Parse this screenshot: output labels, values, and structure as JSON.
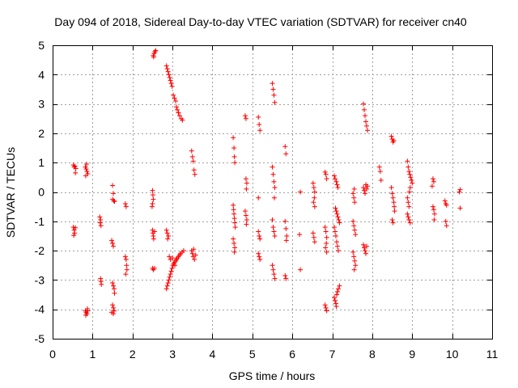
{
  "chart_data": {
    "type": "scatter",
    "title": "Day 094 of 2018, Sidereal Day-to-day VTEC variation (SDTVAR) for receiver cn40",
    "xlabel": "GPS time / hours",
    "ylabel": "SDTVAR / TECUs",
    "xlim": [
      0,
      11
    ],
    "ylim": [
      -5,
      5
    ],
    "x_ticks": [
      "0",
      "1",
      "2",
      "3",
      "4",
      "5",
      "6",
      "7",
      "8",
      "9",
      "10",
      "11"
    ],
    "y_ticks": [
      "-5",
      "-4",
      "-3",
      "-2",
      "-1",
      "0",
      "1",
      "2",
      "3",
      "4",
      "5"
    ],
    "grid": true,
    "marker": "+",
    "color": "#ff0000",
    "series": [
      {
        "name": "SDTVAR",
        "points": [
          [
            0.52,
            0.92
          ],
          [
            0.54,
            0.85
          ],
          [
            0.56,
            0.88
          ],
          [
            0.58,
            0.8
          ],
          [
            0.57,
            0.65
          ],
          [
            0.52,
            -1.2
          ],
          [
            0.54,
            -1.3
          ],
          [
            0.55,
            -1.4
          ],
          [
            0.57,
            -1.22
          ],
          [
            0.53,
            -1.48
          ],
          [
            0.82,
            0.85
          ],
          [
            0.84,
            0.78
          ],
          [
            0.86,
            0.7
          ],
          [
            0.88,
            0.62
          ],
          [
            0.85,
            0.95
          ],
          [
            0.83,
            0.55
          ],
          [
            0.82,
            -4.05
          ],
          [
            0.84,
            -4.1
          ],
          [
            0.86,
            -4.15
          ],
          [
            0.88,
            -4.05
          ],
          [
            0.83,
            -4.2
          ],
          [
            0.87,
            -3.98
          ],
          [
            1.18,
            -0.85
          ],
          [
            1.2,
            -0.95
          ],
          [
            1.19,
            -1.05
          ],
          [
            1.21,
            -1.15
          ],
          [
            1.2,
            -2.95
          ],
          [
            1.21,
            -3.05
          ],
          [
            1.22,
            -3.15
          ],
          [
            1.5,
            0.22
          ],
          [
            1.52,
            -0.05
          ],
          [
            1.5,
            -0.25
          ],
          [
            1.53,
            -0.3
          ],
          [
            1.55,
            -0.32
          ],
          [
            1.48,
            -1.65
          ],
          [
            1.5,
            -1.75
          ],
          [
            1.52,
            -1.85
          ],
          [
            1.5,
            -3.1
          ],
          [
            1.52,
            -3.2
          ],
          [
            1.54,
            -3.3
          ],
          [
            1.55,
            -3.45
          ],
          [
            1.5,
            -3.85
          ],
          [
            1.52,
            -3.95
          ],
          [
            1.54,
            -4.05
          ],
          [
            1.52,
            -4.15
          ],
          [
            1.48,
            -4.1
          ],
          [
            1.82,
            -0.4
          ],
          [
            1.84,
            -0.5
          ],
          [
            1.82,
            -2.2
          ],
          [
            1.84,
            -2.3
          ],
          [
            1.85,
            -2.5
          ],
          [
            1.86,
            -2.65
          ],
          [
            1.83,
            -2.8
          ],
          [
            2.5,
            0.05
          ],
          [
            2.51,
            -0.1
          ],
          [
            2.52,
            -0.25
          ],
          [
            2.5,
            -0.4
          ],
          [
            2.49,
            -0.5
          ],
          [
            2.5,
            -1.3
          ],
          [
            2.51,
            -1.4
          ],
          [
            2.52,
            -1.5
          ],
          [
            2.55,
            -1.35
          ],
          [
            2.53,
            -1.6
          ],
          [
            2.5,
            -2.6
          ],
          [
            2.52,
            -2.65
          ],
          [
            2.55,
            -2.6
          ],
          [
            2.52,
            4.65
          ],
          [
            2.54,
            4.72
          ],
          [
            2.56,
            4.78
          ],
          [
            2.58,
            4.82
          ],
          [
            2.53,
            4.6
          ],
          [
            2.85,
            -1.3
          ],
          [
            2.87,
            -1.4
          ],
          [
            2.9,
            -1.5
          ],
          [
            2.88,
            -1.6
          ],
          [
            2.85,
            4.3
          ],
          [
            2.87,
            4.2
          ],
          [
            2.89,
            4.1
          ],
          [
            2.91,
            4.0
          ],
          [
            2.93,
            3.9
          ],
          [
            2.95,
            3.8
          ],
          [
            2.97,
            3.7
          ],
          [
            2.99,
            3.6
          ],
          [
            3.02,
            3.3
          ],
          [
            3.05,
            3.2
          ],
          [
            3.08,
            3.1
          ],
          [
            3.1,
            2.9
          ],
          [
            3.12,
            2.8
          ],
          [
            3.15,
            2.7
          ],
          [
            3.18,
            2.6
          ],
          [
            3.22,
            2.5
          ],
          [
            3.25,
            2.45
          ],
          [
            2.85,
            -3.3
          ],
          [
            2.87,
            -3.2
          ],
          [
            2.89,
            -3.1
          ],
          [
            2.91,
            -3.0
          ],
          [
            2.93,
            -2.9
          ],
          [
            2.95,
            -2.8
          ],
          [
            2.97,
            -2.7
          ],
          [
            2.99,
            -2.6
          ],
          [
            3.01,
            -2.5
          ],
          [
            3.03,
            -2.45
          ],
          [
            3.05,
            -2.4
          ],
          [
            3.08,
            -2.35
          ],
          [
            3.1,
            -2.3
          ],
          [
            3.12,
            -2.25
          ],
          [
            3.15,
            -2.2
          ],
          [
            3.18,
            -2.15
          ],
          [
            3.2,
            -2.1
          ],
          [
            3.24,
            -2.05
          ],
          [
            3.28,
            -2.0
          ],
          [
            2.92,
            -2.2
          ],
          [
            2.95,
            -2.3
          ],
          [
            3.0,
            -2.25
          ],
          [
            3.06,
            -2.5
          ],
          [
            3.48,
            1.4
          ],
          [
            3.5,
            1.2
          ],
          [
            3.52,
            1.05
          ],
          [
            3.54,
            0.75
          ],
          [
            3.56,
            0.6
          ],
          [
            3.48,
            -2.0
          ],
          [
            3.5,
            -2.1
          ],
          [
            3.52,
            -2.2
          ],
          [
            3.55,
            -2.3
          ],
          [
            3.58,
            -2.15
          ],
          [
            3.53,
            -1.95
          ],
          [
            4.52,
            1.85
          ],
          [
            4.54,
            1.5
          ],
          [
            4.55,
            1.2
          ],
          [
            4.56,
            1.0
          ],
          [
            4.52,
            -0.45
          ],
          [
            4.53,
            -0.6
          ],
          [
            4.54,
            -0.75
          ],
          [
            4.55,
            -0.9
          ],
          [
            4.56,
            -1.05
          ],
          [
            4.57,
            -1.2
          ],
          [
            4.52,
            -1.6
          ],
          [
            4.54,
            -1.75
          ],
          [
            4.56,
            -1.9
          ],
          [
            4.55,
            -2.05
          ],
          [
            4.82,
            2.6
          ],
          [
            4.84,
            2.5
          ],
          [
            4.84,
            0.45
          ],
          [
            4.86,
            0.3
          ],
          [
            4.85,
            0.1
          ],
          [
            4.82,
            -0.65
          ],
          [
            4.84,
            -0.8
          ],
          [
            4.86,
            -0.95
          ],
          [
            4.85,
            -1.1
          ],
          [
            5.15,
            2.55
          ],
          [
            5.17,
            2.3
          ],
          [
            5.19,
            2.1
          ],
          [
            5.15,
            -0.2
          ],
          [
            5.15,
            -1.35
          ],
          [
            5.17,
            -1.5
          ],
          [
            5.19,
            -1.6
          ],
          [
            5.15,
            -2.1
          ],
          [
            5.17,
            -2.2
          ],
          [
            5.19,
            -2.3
          ],
          [
            5.5,
            3.7
          ],
          [
            5.52,
            3.5
          ],
          [
            5.54,
            3.3
          ],
          [
            5.56,
            3.05
          ],
          [
            5.5,
            0.85
          ],
          [
            5.52,
            0.6
          ],
          [
            5.54,
            0.35
          ],
          [
            5.56,
            0.15
          ],
          [
            5.55,
            -0.2
          ],
          [
            5.5,
            -0.95
          ],
          [
            5.52,
            -1.2
          ],
          [
            5.54,
            -1.35
          ],
          [
            5.56,
            -1.5
          ],
          [
            5.5,
            -2.5
          ],
          [
            5.52,
            -2.65
          ],
          [
            5.54,
            -2.8
          ],
          [
            5.56,
            -2.95
          ],
          [
            5.82,
            1.55
          ],
          [
            5.84,
            1.3
          ],
          [
            5.82,
            -1.0
          ],
          [
            5.84,
            -1.25
          ],
          [
            5.86,
            -1.5
          ],
          [
            5.85,
            -1.65
          ],
          [
            5.82,
            -2.85
          ],
          [
            5.84,
            -2.95
          ],
          [
            6.2,
            0.0
          ],
          [
            6.18,
            -1.45
          ],
          [
            6.2,
            -2.65
          ],
          [
            6.52,
            0.3
          ],
          [
            6.54,
            0.15
          ],
          [
            6.56,
            0.0
          ],
          [
            6.55,
            -0.2
          ],
          [
            6.53,
            -0.35
          ],
          [
            6.56,
            -0.5
          ],
          [
            6.52,
            -1.4
          ],
          [
            6.54,
            -1.55
          ],
          [
            6.56,
            -1.7
          ],
          [
            6.82,
            0.68
          ],
          [
            6.84,
            0.6
          ],
          [
            6.86,
            0.45
          ],
          [
            6.82,
            -1.2
          ],
          [
            6.84,
            -1.35
          ],
          [
            6.86,
            -1.55
          ],
          [
            6.85,
            -1.75
          ],
          [
            6.83,
            -1.9
          ],
          [
            6.86,
            -2.05
          ],
          [
            6.82,
            -3.85
          ],
          [
            6.84,
            -3.95
          ],
          [
            6.86,
            -4.05
          ],
          [
            7.05,
            0.55
          ],
          [
            7.07,
            0.45
          ],
          [
            7.1,
            0.35
          ],
          [
            7.12,
            0.25
          ],
          [
            7.14,
            0.15
          ],
          [
            7.08,
            -0.55
          ],
          [
            7.1,
            -0.65
          ],
          [
            7.12,
            -0.75
          ],
          [
            7.14,
            -0.85
          ],
          [
            7.16,
            -0.95
          ],
          [
            7.18,
            -1.05
          ],
          [
            7.05,
            -1.2
          ],
          [
            7.07,
            -1.35
          ],
          [
            7.09,
            -1.5
          ],
          [
            7.11,
            -1.7
          ],
          [
            7.13,
            -1.85
          ],
          [
            7.15,
            -2.0
          ],
          [
            7.05,
            -3.6
          ],
          [
            7.07,
            -3.7
          ],
          [
            7.09,
            -3.8
          ],
          [
            7.11,
            -3.5
          ],
          [
            7.13,
            -3.4
          ],
          [
            7.15,
            -3.3
          ],
          [
            7.18,
            -3.2
          ],
          [
            7.1,
            -3.9
          ],
          [
            7.52,
            -0.05
          ],
          [
            7.54,
            -0.2
          ],
          [
            7.56,
            -0.35
          ],
          [
            7.55,
            0.1
          ],
          [
            7.52,
            -1.0
          ],
          [
            7.54,
            -1.15
          ],
          [
            7.56,
            -1.3
          ],
          [
            7.58,
            -1.45
          ],
          [
            7.52,
            -2.05
          ],
          [
            7.54,
            -2.2
          ],
          [
            7.56,
            -2.35
          ],
          [
            7.58,
            -2.5
          ],
          [
            7.55,
            -2.65
          ],
          [
            7.78,
            3.0
          ],
          [
            7.8,
            2.8
          ],
          [
            7.82,
            2.6
          ],
          [
            7.84,
            2.4
          ],
          [
            7.86,
            2.25
          ],
          [
            7.88,
            2.1
          ],
          [
            7.78,
            0.15
          ],
          [
            7.8,
            0.05
          ],
          [
            7.82,
            -0.05
          ],
          [
            7.84,
            0.25
          ],
          [
            7.86,
            0.1
          ],
          [
            7.88,
            0.2
          ],
          [
            7.78,
            -1.8
          ],
          [
            7.8,
            -1.9
          ],
          [
            7.82,
            -2.0
          ],
          [
            7.84,
            -2.1
          ],
          [
            7.86,
            -1.85
          ],
          [
            8.18,
            0.85
          ],
          [
            8.2,
            0.7
          ],
          [
            8.22,
            0.4
          ],
          [
            8.48,
            1.9
          ],
          [
            8.5,
            1.8
          ],
          [
            8.52,
            1.7
          ],
          [
            8.54,
            1.75
          ],
          [
            8.48,
            0.15
          ],
          [
            8.5,
            -0.05
          ],
          [
            8.52,
            -0.2
          ],
          [
            8.54,
            -0.35
          ],
          [
            8.55,
            -0.5
          ],
          [
            8.56,
            -0.65
          ],
          [
            8.5,
            -0.95
          ],
          [
            8.52,
            -1.05
          ],
          [
            8.88,
            1.05
          ],
          [
            8.9,
            0.85
          ],
          [
            8.92,
            0.7
          ],
          [
            8.94,
            0.6
          ],
          [
            8.96,
            0.5
          ],
          [
            8.98,
            0.4
          ],
          [
            9.0,
            0.3
          ],
          [
            8.95,
            0.15
          ],
          [
            8.93,
            0.0
          ],
          [
            8.88,
            -0.2
          ],
          [
            8.9,
            -0.35
          ],
          [
            8.92,
            -0.5
          ],
          [
            8.88,
            -0.75
          ],
          [
            8.9,
            -0.85
          ],
          [
            8.92,
            -0.95
          ],
          [
            8.95,
            -1.05
          ],
          [
            9.52,
            0.45
          ],
          [
            9.54,
            0.35
          ],
          [
            9.5,
            0.2
          ],
          [
            9.52,
            -0.5
          ],
          [
            9.54,
            -0.6
          ],
          [
            9.56,
            -0.75
          ],
          [
            9.55,
            -0.95
          ],
          [
            9.82,
            -0.3
          ],
          [
            9.84,
            -0.4
          ],
          [
            9.86,
            -0.45
          ],
          [
            9.84,
            -1.0
          ],
          [
            9.86,
            -1.15
          ],
          [
            10.2,
            0.08
          ],
          [
            10.18,
            0.0
          ],
          [
            10.2,
            -0.55
          ]
        ]
      }
    ]
  }
}
